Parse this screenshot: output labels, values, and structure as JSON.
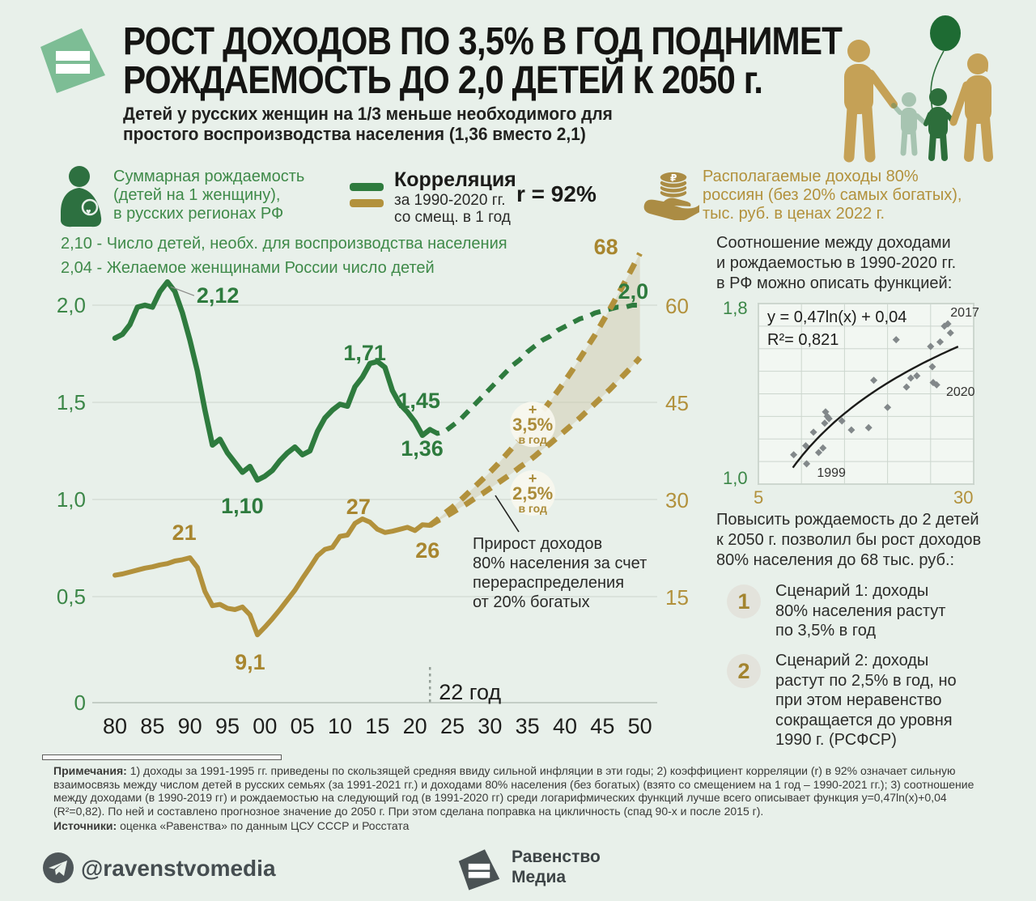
{
  "colors": {
    "green_line": "#2e7b3e",
    "green_text": "#3f8a49",
    "gold_line": "#b2913c",
    "gold_label": "#a8862f",
    "shade_fill": "#cfc9ad",
    "sage_logo": "#7dbd95",
    "slate_logo": "#4a5254",
    "background": "#e8f0ea"
  },
  "header": {
    "title_line1": "РОСТ ДОХОДОВ ПО 3,5% В ГОД ПОДНИМЕТ",
    "title_line2": "РОЖДАЕМОСТЬ ДО 2,0 ДЕТЕЙ К 2050 г.",
    "subtitle_line1": "Детей у русских женщин на 1/3 меньше необходимого для",
    "subtitle_line2": "простого воспроизводства населения (1,36 вместо 2,1)"
  },
  "legend": {
    "fertility": {
      "line1": "Суммарная рождаемость",
      "line2": "(детей на 1 женщину),",
      "line3": "в русских регионах РФ"
    },
    "correlation": {
      "title": "Корреляция",
      "line1": "за 1990-2020 гг.",
      "line2": "со смещ. в 1 год",
      "r_value": "r = 92%"
    },
    "income": {
      "line1": "Располагаемые доходы 80%",
      "line2": "россиян (без 20% самых богатых),",
      "line3": "тыс. руб. в ценах 2022 г."
    }
  },
  "chart_notes": {
    "line1": "2,10 - Число детей, необх. для воспроизводства населения",
    "line2": "2,04 - Желаемое женщинами России число детей"
  },
  "annotation": {
    "lines": [
      "Прирост доходов",
      "80% населения за счет",
      "перераспределения",
      "от 20% богатых"
    ]
  },
  "chart_data": [
    {
      "type": "line",
      "x_ticks": [
        "80",
        "85",
        "90",
        "95",
        "00",
        "05",
        "10",
        "15",
        "20",
        "25",
        "30",
        "35",
        "40",
        "45",
        "50"
      ],
      "x_tick_years": [
        1980,
        1985,
        1990,
        1995,
        2000,
        2005,
        2010,
        2015,
        2020,
        2025,
        2030,
        2035,
        2040,
        2045,
        2050
      ],
      "left_axis": {
        "ticks": [
          "2,0",
          "1,5",
          "1,0",
          "0,5",
          "0"
        ],
        "values": [
          2.0,
          1.5,
          1.0,
          0.5,
          0
        ]
      },
      "right_axis": {
        "ticks": [
          "60",
          "45",
          "30",
          "15"
        ],
        "values": [
          60,
          45,
          30,
          15
        ]
      },
      "year_marker": {
        "year": 2022,
        "label": "22 год"
      },
      "series": [
        {
          "id": "fertility_actual",
          "name": "Суммарная рождаемость (факт)",
          "axis": "left",
          "style": "solid",
          "color": "#2e7b3e",
          "start_year": 1980,
          "values": [
            1.83,
            1.85,
            1.9,
            1.99,
            2.0,
            1.99,
            2.07,
            2.12,
            2.07,
            1.96,
            1.82,
            1.66,
            1.46,
            1.28,
            1.31,
            1.24,
            1.19,
            1.14,
            1.17,
            1.1,
            1.12,
            1.15,
            1.2,
            1.24,
            1.27,
            1.23,
            1.25,
            1.35,
            1.42,
            1.46,
            1.49,
            1.48,
            1.58,
            1.63,
            1.7,
            1.71,
            1.68,
            1.56,
            1.49,
            1.45,
            1.4,
            1.33,
            1.36
          ]
        },
        {
          "id": "fertility_forecast",
          "name": "Суммарная рождаемость (прогноз)",
          "axis": "left",
          "style": "dashed",
          "color": "#2e7b3e",
          "start_year": 2022,
          "values": [
            1.36,
            1.34,
            1.35,
            1.38,
            1.41,
            1.45,
            1.49,
            1.53,
            1.57,
            1.61,
            1.65,
            1.69,
            1.72,
            1.76,
            1.79,
            1.82,
            1.84,
            1.87,
            1.89,
            1.91,
            1.93,
            1.94,
            1.96,
            1.97,
            1.98,
            1.99,
            1.99,
            2.0,
            2.0
          ]
        },
        {
          "id": "income_actual",
          "name": "Доходы 80% россиян (факт)",
          "axis": "right",
          "style": "solid",
          "color": "#b2913c",
          "start_year": 1980,
          "values": [
            18.3,
            18.5,
            18.8,
            19.1,
            19.4,
            19.6,
            19.9,
            20.1,
            20.5,
            20.7,
            21.0,
            19.5,
            15.8,
            13.6,
            13.8,
            13.2,
            13.0,
            13.4,
            12.2,
            9.1,
            10.3,
            11.6,
            13.0,
            14.5,
            16.0,
            17.8,
            19.5,
            21.3,
            22.3,
            22.6,
            24.3,
            24.5,
            26.3,
            27.0,
            26.5,
            25.4,
            24.9,
            25.1,
            25.4,
            25.7,
            25.2,
            26.1,
            26.0
          ]
        },
        {
          "id": "income_forecast_3_5",
          "name": "Сценарий 1: +3,5% в год",
          "axis": "right",
          "style": "dashed",
          "color": "#b2913c",
          "start_year": 2022,
          "values": [
            26.0,
            26.9,
            27.9,
            28.8,
            29.8,
            30.9,
            32.0,
            33.1,
            34.2,
            35.4,
            36.7,
            38.0,
            39.3,
            40.7,
            42.1,
            43.6,
            45.1,
            46.7,
            48.3,
            50.0,
            51.8,
            53.6,
            55.4,
            57.4,
            59.4,
            61.5,
            63.6,
            65.8,
            68.0
          ]
        },
        {
          "id": "income_forecast_2_5",
          "name": "Сценарий 2: +2,5% в год",
          "axis": "right",
          "style": "dashed",
          "color": "#b2913c",
          "start_year": 2022,
          "values": [
            26.0,
            26.7,
            27.3,
            28.0,
            28.7,
            29.4,
            30.2,
            30.9,
            31.7,
            32.5,
            33.3,
            34.1,
            35.0,
            35.8,
            36.7,
            37.7,
            38.6,
            39.6,
            40.6,
            41.6,
            42.6,
            43.7,
            44.8,
            45.9,
            47.0,
            48.2,
            49.4,
            50.6,
            51.9
          ]
        }
      ],
      "shaded_area_between": [
        "income_forecast_3_5",
        "income_forecast_2_5"
      ],
      "point_labels": [
        {
          "text": "2,12",
          "series": "fertility",
          "year": 1987,
          "value": 2.12,
          "callout": true
        },
        {
          "text": "1,71",
          "series": "fertility",
          "year": 2015,
          "value": 1.71
        },
        {
          "text": "1,45",
          "series": "fertility",
          "year": 2019,
          "value": 1.45
        },
        {
          "text": "1,36",
          "series": "fertility",
          "year": 2022,
          "value": 1.36
        },
        {
          "text": "1,10",
          "series": "fertility",
          "year": 1999,
          "value": 1.1
        },
        {
          "text": "2,0",
          "series": "fertility",
          "year": 2050,
          "value": 2.0
        },
        {
          "text": "21",
          "series": "income",
          "year": 1990,
          "value": 21
        },
        {
          "text": "27",
          "series": "income",
          "year": 2013,
          "value": 27
        },
        {
          "text": "26",
          "series": "income",
          "year": 2022,
          "value": 26
        },
        {
          "text": "9,1",
          "series": "income",
          "year": 1999,
          "value": 9.1
        },
        {
          "text": "68",
          "series": "income",
          "year": 2050,
          "value": 68
        }
      ],
      "growth_badges": [
        {
          "plus": "+",
          "pct": "3,5%",
          "unit": "в год",
          "anchor_year": 2035.7,
          "anchor_value": 41.6
        },
        {
          "plus": "+",
          "pct": "2,5%",
          "unit": "в год",
          "anchor_year": 2035.7,
          "anchor_value": 31.0
        }
      ]
    },
    {
      "type": "scatter",
      "formula": "y = 0,47ln(x) + 0,04",
      "r_squared": "R²= 0,821",
      "trend": {
        "a": 0.47,
        "b": 0.04,
        "x_from": 9,
        "x_to": 28.2
      },
      "x_range": [
        5,
        30
      ],
      "y_range": [
        1.0,
        1.8
      ],
      "x_ticks": [
        "5",
        "30"
      ],
      "y_ticks": [
        "1,8",
        "1,0"
      ],
      "points": [
        [
          9.1,
          1.13
        ],
        [
          10.5,
          1.17
        ],
        [
          10.6,
          1.09
        ],
        [
          11.4,
          1.23
        ],
        [
          12.0,
          1.14
        ],
        [
          12.5,
          1.16
        ],
        [
          12.7,
          1.27
        ],
        [
          12.8,
          1.32
        ],
        [
          13.0,
          1.3
        ],
        [
          13.2,
          1.29
        ],
        [
          14.7,
          1.28
        ],
        [
          15.8,
          1.24
        ],
        [
          17.8,
          1.25
        ],
        [
          18.4,
          1.46
        ],
        [
          20.0,
          1.34
        ],
        [
          21.0,
          1.64
        ],
        [
          22.2,
          1.43
        ],
        [
          22.7,
          1.47
        ],
        [
          23.4,
          1.48
        ],
        [
          25.0,
          1.61
        ],
        [
          25.2,
          1.52
        ],
        [
          25.3,
          1.45
        ],
        [
          25.7,
          1.44
        ],
        [
          26.1,
          1.63
        ],
        [
          26.6,
          1.7
        ],
        [
          27.0,
          1.71
        ],
        [
          27.3,
          1.67
        ]
      ],
      "point_year_labels": [
        {
          "text": "2017",
          "x": 27.3,
          "y": 1.76
        },
        {
          "text": "2020",
          "x": 26.8,
          "y": 1.41
        },
        {
          "text": "1999",
          "x": 11.8,
          "y": 1.05
        }
      ]
    }
  ],
  "right_column": {
    "intro": [
      "Соотношение между доходами",
      "и рождаемостью в 1990-2020 гг.",
      "в РФ можно описать функцией:"
    ],
    "conclusion": [
      "Повысить рождаемость до 2 детей",
      "к 2050 г. позволил бы рост доходов",
      "80% населения до 68 тыс. руб.:"
    ],
    "scenarios": [
      {
        "num": "1",
        "lines": [
          "Сценарий 1: доходы",
          "80% населения растут",
          "по 3,5% в год"
        ]
      },
      {
        "num": "2",
        "lines": [
          "Сценарий 2: доходы",
          "растут по 2,5% в год, но",
          "при этом неравенство",
          "сокращается до уровня",
          "1990 г. (РСФСР)"
        ]
      }
    ]
  },
  "footer": {
    "notes_label": "Примечания:",
    "notes_text": " 1) доходы за 1991-1995 гг. приведены по скользящей средняя ввиду сильной инфляции в эти годы; 2) коэффициент корреляции (r) в 92% означает сильную взаимосвязь между числом детей в русских семьях (за 1991-2021 гг.) и доходами 80% населения (без богатых) (взято со смещением на 1 год – 1990-2021 гг.); 3) соотношение между доходами (в 1990-2019 гг) и рождаемостью на следующий год (в 1991-2020 гг) среди логарифмических функций лучше всего описывает функция y=0,47ln(x)+0,04 (R²=0,82). По ней и составлено прогнозное значение до 2050 г. При этом сделана поправка на цикличность (спад 90-х и после 2015 г).",
    "sources_label": "Источники:",
    "sources_text": " оценка «Равенства» по данным ЦСУ СССР и Росстата"
  },
  "bottom_bar": {
    "telegram_handle": "@ravenstvomedia",
    "brand_line1": "Равенство",
    "brand_line2": "Медиа"
  }
}
